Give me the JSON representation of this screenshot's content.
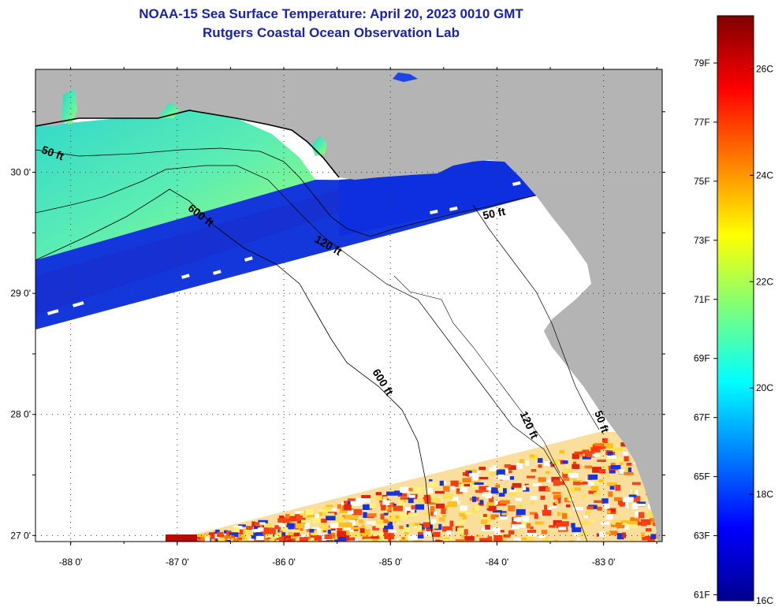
{
  "chart_data": {
    "type": "heatmap",
    "title": "NOAA-15 Sea Surface Temperature:  April 20, 2023 0010 GMT",
    "subtitle": "Rutgers Coastal Ocean Observation Lab",
    "x_ticks": [
      "-88 0'",
      "-87 0'",
      "-86 0'",
      "-85 0'",
      "-84 0'",
      "-83 0'"
    ],
    "x_values": [
      -88,
      -87,
      -86,
      -85,
      -84,
      -83
    ],
    "y_ticks": [
      "30 0'",
      "29 0'",
      "28 0'",
      "27 0'"
    ],
    "y_values": [
      30,
      29,
      28,
      27
    ],
    "xlim": [
      -88.33,
      -82.45
    ],
    "ylim": [
      26.95,
      30.85
    ],
    "grid": true,
    "contour_labels": [
      {
        "text": "50 ft",
        "lon": -88.18,
        "lat": 30.13,
        "rotate": 20
      },
      {
        "text": "600 ft",
        "lon": -86.8,
        "lat": 29.62,
        "rotate": 38
      },
      {
        "text": "120 ft",
        "lon": -85.6,
        "lat": 29.37,
        "rotate": 30
      },
      {
        "text": "50 ft",
        "lon": -84.02,
        "lat": 29.63,
        "rotate": -12
      },
      {
        "text": "600 ft",
        "lon": -85.1,
        "lat": 28.25,
        "rotate": 58
      },
      {
        "text": "120 ft",
        "lon": -83.73,
        "lat": 27.9,
        "rotate": 65
      },
      {
        "text": "50 ft",
        "lon": -83.05,
        "lat": 27.93,
        "rotate": 70
      }
    ],
    "colorbar": {
      "fahrenheit_labels": [
        "79F",
        "77F",
        "75F",
        "73F",
        "71F",
        "69F",
        "67F",
        "65F",
        "63F",
        "61F"
      ],
      "celsius_labels": [
        "26C",
        "24C",
        "22C",
        "20C",
        "18C",
        "16C"
      ],
      "range_C": [
        16,
        27
      ]
    },
    "colors": {
      "land": "#b4b4b4",
      "no_data": "#ffffff",
      "title": "#1a23a8",
      "warm_water": "#7dff6e",
      "cold_water": "#1034d8"
    }
  }
}
